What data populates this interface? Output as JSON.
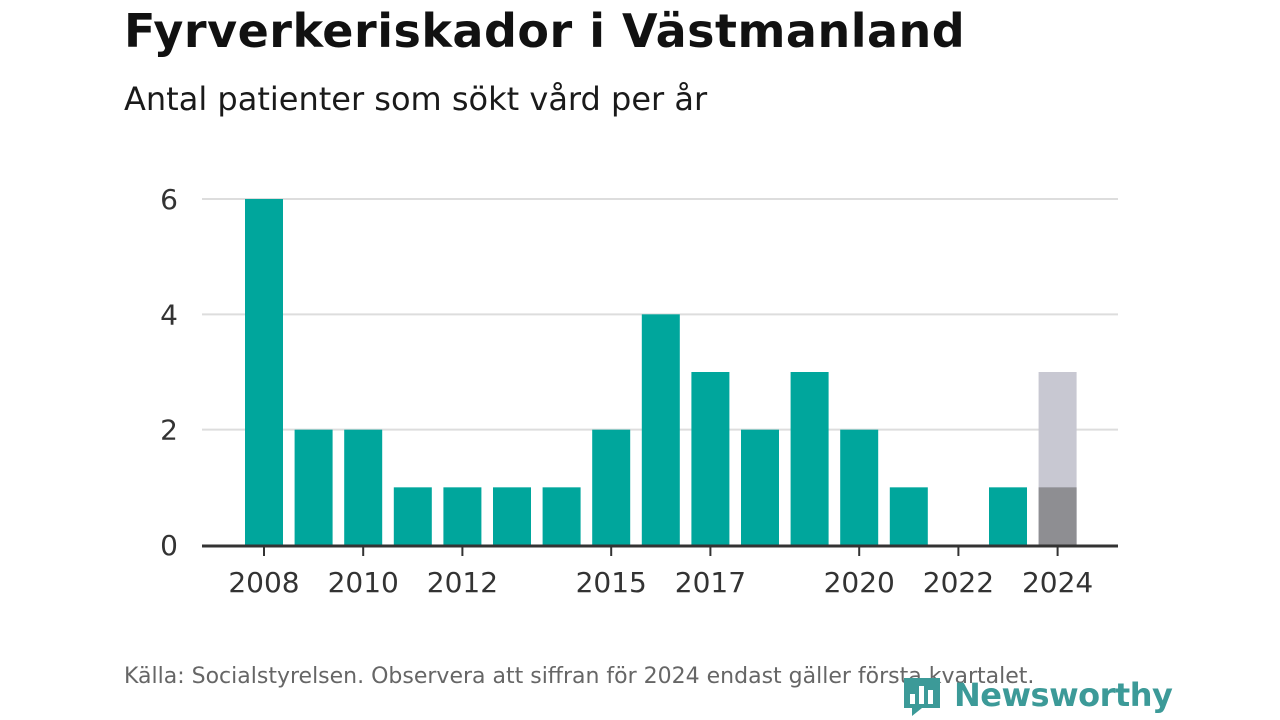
{
  "title": "Fyrverkeriskador i Västmanland",
  "subtitle": "Antal patienter som sökt vård per år",
  "source": "Källa: Socialstyrelsen. Observera att siffran för 2024 endast gäller första kvartalet.",
  "logo": {
    "name": "Newsworthy",
    "icon": "newsworthy-bar-icon"
  },
  "colors": {
    "bar": "#00a69c",
    "partial_bar": "#8e8e92",
    "ghost_bar": "#c8c8d2",
    "grid": "#dddddd",
    "axis": "#333333",
    "logo": "#3c9a98"
  },
  "chart_data": {
    "type": "bar",
    "title": "Fyrverkeriskador i Västmanland",
    "subtitle": "Antal patienter som sökt vård per år",
    "xlabel": "",
    "ylabel": "",
    "ylim": [
      0,
      6
    ],
    "yticks": [
      0,
      2,
      4,
      6
    ],
    "grid": true,
    "categories": [
      2008,
      2009,
      2010,
      2011,
      2012,
      2013,
      2014,
      2015,
      2016,
      2017,
      2018,
      2019,
      2020,
      2021,
      2022,
      2023,
      2024
    ],
    "values": [
      6,
      2,
      2,
      1,
      1,
      1,
      1,
      2,
      4,
      3,
      2,
      3,
      2,
      1,
      0,
      1,
      1
    ],
    "xtick_labels": [
      "2008",
      "2010",
      "2012",
      "2015",
      "2017",
      "2020",
      "2022",
      "2024"
    ],
    "overlay": [
      {
        "category": 2024,
        "value": 3
      }
    ]
  }
}
